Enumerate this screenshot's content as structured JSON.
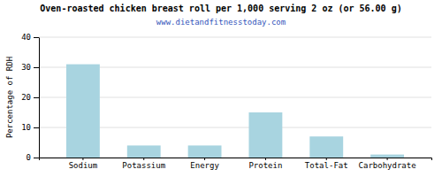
{
  "chart_data": {
    "type": "bar",
    "title": "Oven-roasted chicken breast roll per 1,000 serving 2 oz (or 56.00 g)",
    "subtitle": "www.dietandfitnesstoday.com",
    "categories": [
      "Sodium",
      "Potassium",
      "Energy",
      "Protein",
      "Total-Fat",
      "Carbohydrate"
    ],
    "values": [
      31,
      4,
      4,
      15,
      7,
      1
    ],
    "color": "#a8d4e0",
    "ylabel": "Percentage of RDH",
    "ylim": [
      0,
      40
    ],
    "yticks": [
      0,
      10,
      20,
      30,
      40
    ],
    "grid": true
  }
}
